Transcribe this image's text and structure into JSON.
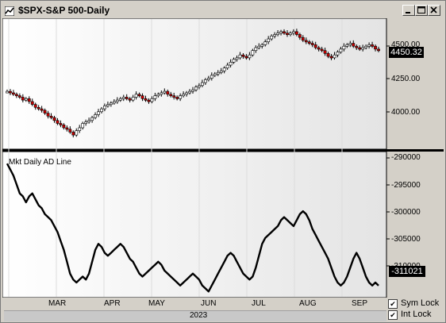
{
  "window": {
    "title": "$SPX-S&P 500-Daily",
    "buttons": [
      "minimize",
      "maximize",
      "close"
    ]
  },
  "price_panel": {
    "last_price": "4450.32",
    "scale_labels": [
      "4500.00",
      "4250.00",
      "4000.00"
    ]
  },
  "ad_panel": {
    "title": "Mkt Daily AD Line",
    "last_value": "-311021",
    "scale_labels": [
      "-290000",
      "-295000",
      "-300000",
      "-305000",
      "-310000"
    ]
  },
  "time_axis": {
    "months": [
      "MAR",
      "APR",
      "MAY",
      "JUN",
      "JUL",
      "AUG",
      "SEP"
    ],
    "year": "2023"
  },
  "options": {
    "sym_lock": {
      "label": "Sym Lock",
      "checked": true
    },
    "int_lock": {
      "label": "Int Lock",
      "checked": true
    }
  },
  "chart_data": [
    {
      "type": "candlestick",
      "ylim": [
        3800,
        4650
      ],
      "close_series": [
        4170,
        4160,
        4150,
        4140,
        4130,
        4110,
        4120,
        4100,
        4080,
        4060,
        4050,
        4040,
        4020,
        4000,
        3990,
        3970,
        3950,
        3940,
        3920,
        3910,
        3890,
        3870,
        3900,
        3920,
        3950,
        3960,
        3970,
        3990,
        4010,
        4030,
        4050,
        4070,
        4080,
        4090,
        4100,
        4110,
        4120,
        4130,
        4120,
        4110,
        4130,
        4150,
        4140,
        4120,
        4110,
        4100,
        4120,
        4140,
        4150,
        4160,
        4170,
        4150,
        4140,
        4130,
        4120,
        4140,
        4150,
        4160,
        4170,
        4180,
        4200,
        4210,
        4230,
        4250,
        4260,
        4280,
        4290,
        4300,
        4310,
        4330,
        4350,
        4370,
        4390,
        4400,
        4420,
        4410,
        4400,
        4420,
        4450,
        4470,
        4480,
        4490,
        4510,
        4530,
        4550,
        4560,
        4570,
        4580,
        4570,
        4560,
        4570,
        4580,
        4560,
        4540,
        4520,
        4510,
        4500,
        4490,
        4470,
        4460,
        4450,
        4430,
        4410,
        4400,
        4420,
        4440,
        4460,
        4480,
        4490,
        4500,
        4480,
        4470,
        4460,
        4470,
        4480,
        4490,
        4480,
        4460,
        4450
      ],
      "colors": {
        "up": "#ffffff",
        "down": "#cc0000",
        "outline": "#000000"
      }
    },
    {
      "type": "line",
      "name": "Mkt Daily AD Line",
      "ylim": [
        -312500,
        -289000
      ],
      "values": [
        -290500,
        -291500,
        -292500,
        -294000,
        -295500,
        -296000,
        -297000,
        -296000,
        -295500,
        -296500,
        -297500,
        -298000,
        -299000,
        -299500,
        -300000,
        -301000,
        -302000,
        -303500,
        -305000,
        -307000,
        -309000,
        -310000,
        -310500,
        -310000,
        -309500,
        -310000,
        -309000,
        -307000,
        -305000,
        -304000,
        -304500,
        -305500,
        -306000,
        -305500,
        -305000,
        -304500,
        -304000,
        -304500,
        -305500,
        -306500,
        -307000,
        -308000,
        -309000,
        -309500,
        -309000,
        -308500,
        -308000,
        -307500,
        -307000,
        -307500,
        -308500,
        -309000,
        -309500,
        -310000,
        -310500,
        -311000,
        -310500,
        -310000,
        -309500,
        -309000,
        -309500,
        -310000,
        -311000,
        -311500,
        -312000,
        -311000,
        -310000,
        -309000,
        -308000,
        -307000,
        -306000,
        -305500,
        -306000,
        -307000,
        -308000,
        -309000,
        -309500,
        -310000,
        -309500,
        -308000,
        -306000,
        -304000,
        -303000,
        -302500,
        -302000,
        -301500,
        -301000,
        -300000,
        -299500,
        -300000,
        -300500,
        -301000,
        -300000,
        -299000,
        -298500,
        -299000,
        -300000,
        -301500,
        -302500,
        -303500,
        -304500,
        -305500,
        -306500,
        -308000,
        -309500,
        -310500,
        -311000,
        -310500,
        -309500,
        -308000,
        -306500,
        -305500,
        -306500,
        -308000,
        -309500,
        -310500,
        -311000,
        -310500,
        -311021
      ]
    }
  ]
}
